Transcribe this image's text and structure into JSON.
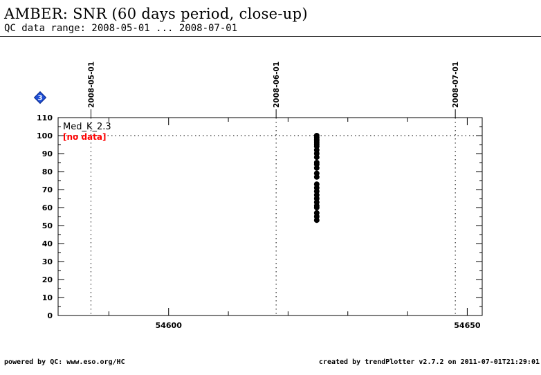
{
  "header": {
    "title": "AMBER: SNR (60 days period, close-up)",
    "subtitle": "QC data range: 2008-05-01 ... 2008-07-01"
  },
  "footer": {
    "left": "powered by QC: www.eso.org/HC",
    "right": "created by trendPlotter v2.7.2 on 2011-07-01T21:29:01"
  },
  "chart_data": {
    "type": "scatter",
    "badge": "3",
    "xlim": [
      54581.5,
      54652.5
    ],
    "ylim": [
      0,
      110
    ],
    "x_ticks": [
      54600,
      54650
    ],
    "x_tick_labels": [
      "54600",
      "54650"
    ],
    "x_minor_step": 10,
    "y_ticks": [
      0,
      10,
      20,
      30,
      40,
      50,
      60,
      70,
      80,
      90,
      100,
      110
    ],
    "y_tick_labels": [
      "0",
      "10",
      "20",
      "30",
      "40",
      "50",
      "60",
      "70",
      "80",
      "90",
      "100",
      "110"
    ],
    "date_markers": [
      {
        "x": 54587,
        "label": "2008-05-01"
      },
      {
        "x": 54618,
        "label": "2008-06-01"
      },
      {
        "x": 54648,
        "label": "2008-07-01"
      }
    ],
    "reference_line": 100,
    "series": [
      {
        "name": "Med_K_2.3",
        "status": "[no data]",
        "color": "#000000",
        "status_color": "#ff0000",
        "points": [
          {
            "x": 54624.8,
            "y": 100
          },
          {
            "x": 54624.8,
            "y": 99
          },
          {
            "x": 54624.8,
            "y": 98
          },
          {
            "x": 54624.8,
            "y": 97
          },
          {
            "x": 54624.8,
            "y": 96
          },
          {
            "x": 54624.8,
            "y": 95
          },
          {
            "x": 54624.8,
            "y": 94
          },
          {
            "x": 54624.8,
            "y": 92
          },
          {
            "x": 54624.8,
            "y": 90
          },
          {
            "x": 54624.8,
            "y": 88
          },
          {
            "x": 54624.8,
            "y": 85
          },
          {
            "x": 54624.8,
            "y": 84
          },
          {
            "x": 54624.8,
            "y": 82
          },
          {
            "x": 54624.8,
            "y": 79
          },
          {
            "x": 54624.8,
            "y": 77
          },
          {
            "x": 54624.8,
            "y": 73
          },
          {
            "x": 54624.8,
            "y": 71
          },
          {
            "x": 54624.8,
            "y": 69
          },
          {
            "x": 54624.8,
            "y": 67
          },
          {
            "x": 54624.8,
            "y": 65
          },
          {
            "x": 54624.8,
            "y": 63
          },
          {
            "x": 54624.8,
            "y": 61
          },
          {
            "x": 54624.8,
            "y": 60
          },
          {
            "x": 54624.8,
            "y": 57
          },
          {
            "x": 54624.8,
            "y": 55
          },
          {
            "x": 54624.8,
            "y": 53
          }
        ]
      }
    ]
  }
}
